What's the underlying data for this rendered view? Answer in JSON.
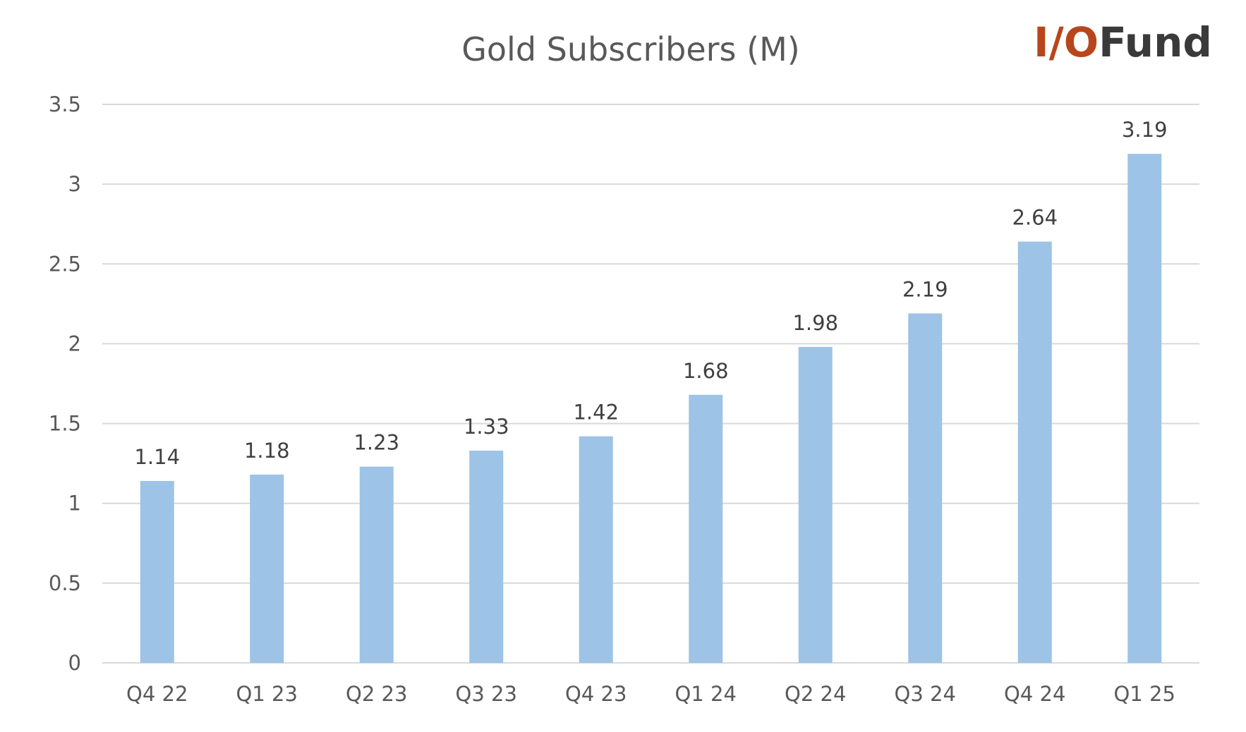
{
  "colors": {
    "bar": "#9dc3e6",
    "logo_accent": "#b8461c",
    "logo_text": "#3a3a3a"
  },
  "logo": {
    "prefix": "I/O",
    "suffix": "Fund"
  },
  "chart_data": {
    "type": "bar",
    "title": "Gold Subscribers (M)",
    "xlabel": "",
    "ylabel": "",
    "categories": [
      "Q4 22",
      "Q1 23",
      "Q2 23",
      "Q3 23",
      "Q4 23",
      "Q1 24",
      "Q2 24",
      "Q3 24",
      "Q4 24",
      "Q1 25"
    ],
    "values": [
      1.14,
      1.18,
      1.23,
      1.33,
      1.42,
      1.68,
      1.98,
      2.19,
      2.64,
      3.19
    ],
    "data_labels": [
      "1.14",
      "1.18",
      "1.23",
      "1.33",
      "1.42",
      "1.68",
      "1.98",
      "2.19",
      "2.64",
      "3.19"
    ],
    "ylim": [
      0,
      3.5
    ],
    "yticks": [
      "0",
      "0.5",
      "1",
      "1.5",
      "2",
      "2.5",
      "3",
      "3.5"
    ],
    "grid": true,
    "legend": "none"
  }
}
